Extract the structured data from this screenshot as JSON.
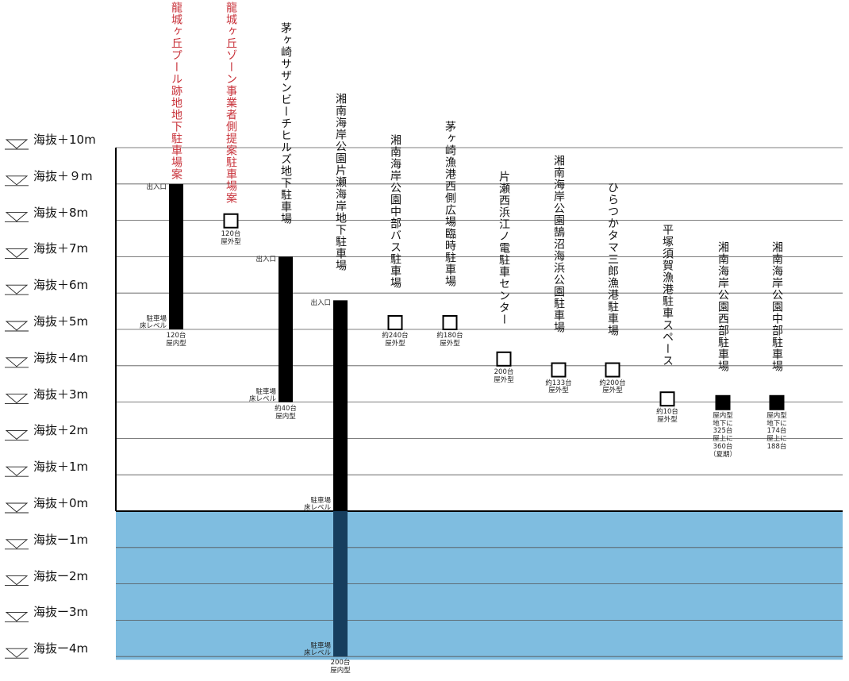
{
  "levels": [
    {
      "label": "海抜＋10m",
      "value": 10
    },
    {
      "label": "海抜＋９m",
      "value": 9
    },
    {
      "label": "海抜＋8m",
      "value": 8
    },
    {
      "label": "海抜＋7m",
      "value": 7
    },
    {
      "label": "海抜＋6m",
      "value": 6
    },
    {
      "label": "海抜＋5m",
      "value": 5
    },
    {
      "label": "海抜＋4m",
      "value": 4
    },
    {
      "label": "海抜＋3m",
      "value": 3
    },
    {
      "label": "海抜＋2m",
      "value": 2
    },
    {
      "label": "海抜＋1m",
      "value": 1
    },
    {
      "label": "海抜＋0m",
      "value": 0
    },
    {
      "label": "海抜ー1m",
      "value": -1
    },
    {
      "label": "海抜ー2m",
      "value": -2
    },
    {
      "label": "海抜ー3m",
      "value": -3
    },
    {
      "label": "海抜ー4m",
      "value": -4
    }
  ],
  "colors": {
    "sea": "#7fbde0",
    "bar": "#000000",
    "bar_underwater": "#163e5e",
    "proposal_text": "#c8323a",
    "grid": "#555555"
  },
  "sites": [
    {
      "id": "tatsushirogaoka-pool",
      "title": "龍城ヶ丘プール跡地地下駐車場案",
      "proposal": true,
      "kind": "bar",
      "top": 9,
      "bottom": 5,
      "entrance_label": "出入口",
      "floor_label": [
        "駐車場",
        "床レベル"
      ],
      "capacity_lines": [
        "120台",
        "屋内型"
      ]
    },
    {
      "id": "tatsushirogaoka-zone",
      "title": "龍城ヶ丘ゾーン事業者側提案駐車場案",
      "proposal": true,
      "kind": "open",
      "level": 7.8,
      "capacity_lines": [
        "120台",
        "屋外型"
      ]
    },
    {
      "id": "chigasaki-southern-beach-hills",
      "title": "茅ヶ崎サザンビーチヒルズ地下駐車場",
      "proposal": false,
      "kind": "bar",
      "top": 7,
      "bottom": 3,
      "entrance_label": "出入口",
      "floor_label": [
        "駐車場",
        "床レベル"
      ],
      "capacity_lines": [
        "約40台",
        "屋内型"
      ]
    },
    {
      "id": "shonan-kaigan-katase",
      "title": "湘南海岸公園片瀬海岸地下駐車場",
      "proposal": false,
      "kind": "bar",
      "top": 5.8,
      "bottom": -4,
      "entrance_label": "出入口",
      "floor_label": [
        "駐車場",
        "床レベル"
      ],
      "floor_label_top": [
        "駐車場",
        "床レベル"
      ],
      "capacity_lines": [
        "200台",
        "屋内型"
      ]
    },
    {
      "id": "shonan-kaigan-chubu-bus",
      "title": "湘南海岸公園中部バス駐車場",
      "proposal": false,
      "kind": "open",
      "level": 5,
      "capacity_lines": [
        "約240台",
        "屋外型"
      ]
    },
    {
      "id": "chigasaki-fishing-port-west",
      "title": "茅ヶ崎漁港西側広場臨時駐車場",
      "proposal": false,
      "kind": "open",
      "level": 5,
      "capacity_lines": [
        "約180台",
        "屋外型"
      ]
    },
    {
      "id": "katase-nishihama-enoden",
      "title": "片瀬西浜江ノ電駐車センター",
      "proposal": false,
      "kind": "open",
      "level": 4,
      "capacity_lines": [
        "200台",
        "屋外型"
      ]
    },
    {
      "id": "shonan-kugenuma",
      "title": "湘南海岸公園鵠沼海浜公園駐車場",
      "proposal": false,
      "kind": "open",
      "level": 3.7,
      "capacity_lines": [
        "約133台",
        "屋外型"
      ]
    },
    {
      "id": "hiratsuka-tamasaburo",
      "title": "ひらつかタマ三郎漁港駐車場",
      "proposal": false,
      "kind": "open",
      "level": 3.7,
      "capacity_lines": [
        "約200台",
        "屋外型"
      ]
    },
    {
      "id": "hiratsuka-suka-fishing-port",
      "title": "平塚須賀漁港駐車スペース",
      "proposal": false,
      "kind": "open",
      "level": 2.9,
      "capacity_lines": [
        "約10台",
        "屋外型"
      ]
    },
    {
      "id": "shonan-kaigan-seibu",
      "title": "湘南海岸公園西部駐車場",
      "proposal": false,
      "kind": "filled",
      "level": 2.8,
      "capacity_lines": [
        "屋内型",
        "地下に",
        "325台",
        "屋上に",
        "360台",
        "（夏期）"
      ]
    },
    {
      "id": "shonan-kaigan-chubu",
      "title": "湘南海岸公園中部駐車場",
      "proposal": false,
      "kind": "filled",
      "level": 2.8,
      "capacity_lines": [
        "屋内型",
        "地下に",
        "174台",
        "屋上に",
        "188台"
      ]
    }
  ]
}
